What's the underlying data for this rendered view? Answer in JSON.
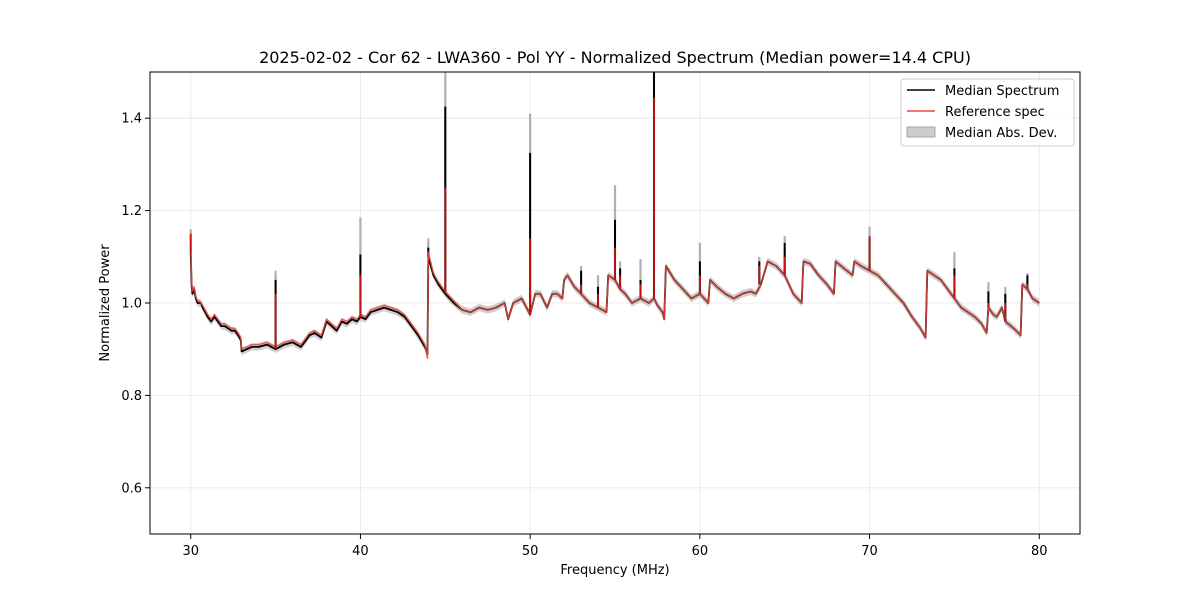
{
  "chart_data": {
    "type": "line",
    "title": "2025-02-02 - Cor 62 - LWA360 - Pol YY - Normalized Spectrum (Median power=14.4 CPU)",
    "xlabel": "Frequency (MHz)",
    "ylabel": "Normalized Power",
    "xlim": [
      27.6,
      82.4
    ],
    "ylim": [
      0.5,
      1.5
    ],
    "xticks": [
      30,
      40,
      50,
      60,
      70,
      80
    ],
    "yticks": [
      0.6,
      0.8,
      1.0,
      1.2,
      1.4
    ],
    "xtick_labels": [
      "30",
      "40",
      "50",
      "60",
      "70",
      "80"
    ],
    "ytick_labels": [
      "0.6",
      "0.8",
      "1.0",
      "1.2",
      "1.4"
    ],
    "grid": true,
    "legend_position": "top-right",
    "legend": [
      "Median Spectrum",
      "Reference spec",
      "Median Abs. Dev."
    ],
    "colors": {
      "median": "#000000",
      "reference": "#e8483f",
      "band": "#999999",
      "grid": "#e6e6e6",
      "legend_border": "#cccccc"
    },
    "mad_width": 0.008,
    "series": [
      {
        "name": "Median Spectrum",
        "x": [
          30.0,
          30.05,
          30.1,
          30.2,
          30.3,
          30.4,
          30.5,
          30.6,
          30.7,
          30.85,
          31.0,
          31.2,
          31.4,
          31.6,
          31.8,
          32.0,
          32.2,
          32.4,
          32.6,
          32.8,
          32.95,
          33.0,
          33.3,
          33.6,
          34.0,
          34.5,
          35.0,
          35.5,
          36.0,
          36.5,
          37.0,
          37.3,
          37.5,
          37.7,
          38.0,
          38.3,
          38.6,
          38.9,
          39.2,
          39.5,
          39.8,
          40.0,
          40.3,
          40.6,
          41.0,
          41.4,
          41.8,
          42.2,
          42.6,
          43.0,
          43.4,
          43.8,
          43.95,
          44.0,
          44.3,
          44.6,
          45.0,
          45.5,
          46.0,
          46.5,
          47.0,
          47.5,
          48.0,
          48.5,
          48.7,
          49.0,
          49.5,
          50.0,
          50.3,
          50.6,
          51.0,
          51.3,
          51.6,
          51.9,
          52.0,
          52.2,
          52.6,
          53.0,
          53.5,
          54.0,
          54.5,
          54.6,
          55.0,
          55.3,
          55.6,
          56.0,
          56.5,
          57.0,
          57.3,
          57.5,
          57.8,
          57.9,
          58.0,
          58.5,
          59.0,
          59.5,
          60.0,
          60.5,
          60.6,
          61.0,
          61.5,
          62.0,
          62.5,
          63.0,
          63.3,
          63.6,
          64.0,
          64.5,
          65.0,
          65.5,
          66.0,
          66.1,
          66.5,
          67.0,
          67.5,
          67.9,
          68.0,
          68.5,
          69.0,
          69.1,
          69.5,
          70.0,
          70.5,
          71.0,
          71.5,
          72.0,
          72.5,
          73.0,
          73.3,
          73.4,
          73.8,
          74.2,
          74.6,
          75.0,
          75.4,
          75.8,
          76.2,
          76.6,
          76.9,
          77.0,
          77.3,
          77.5,
          77.8,
          78.0,
          78.5,
          78.9,
          79.0,
          79.3,
          79.6,
          80.0
        ],
        "values": [
          1.11,
          1.04,
          1.02,
          1.03,
          1.01,
          1.0,
          1.0,
          1.0,
          0.99,
          0.98,
          0.97,
          0.96,
          0.97,
          0.96,
          0.95,
          0.95,
          0.945,
          0.94,
          0.94,
          0.93,
          0.92,
          0.895,
          0.9,
          0.905,
          0.905,
          0.91,
          0.9,
          0.91,
          0.915,
          0.905,
          0.93,
          0.935,
          0.93,
          0.925,
          0.96,
          0.95,
          0.94,
          0.96,
          0.955,
          0.965,
          0.96,
          0.97,
          0.965,
          0.98,
          0.985,
          0.99,
          0.985,
          0.98,
          0.97,
          0.95,
          0.93,
          0.905,
          0.89,
          1.1,
          1.06,
          1.04,
          1.02,
          1.0,
          0.985,
          0.98,
          0.99,
          0.985,
          0.99,
          1.0,
          0.965,
          1.0,
          1.01,
          0.975,
          1.02,
          1.02,
          0.99,
          1.02,
          1.02,
          1.01,
          1.05,
          1.06,
          1.035,
          1.02,
          1.0,
          0.99,
          0.98,
          1.06,
          1.05,
          1.03,
          1.02,
          1.0,
          1.01,
          1.0,
          1.01,
          0.995,
          0.98,
          0.965,
          1.08,
          1.05,
          1.03,
          1.01,
          1.02,
          1.0,
          1.05,
          1.035,
          1.02,
          1.01,
          1.02,
          1.025,
          1.02,
          1.04,
          1.09,
          1.08,
          1.06,
          1.02,
          1.0,
          1.09,
          1.085,
          1.06,
          1.04,
          1.02,
          1.09,
          1.075,
          1.06,
          1.09,
          1.08,
          1.07,
          1.06,
          1.04,
          1.02,
          1.0,
          0.97,
          0.945,
          0.925,
          1.07,
          1.06,
          1.05,
          1.03,
          1.01,
          0.99,
          0.98,
          0.97,
          0.955,
          0.935,
          0.99,
          0.975,
          0.97,
          0.99,
          0.96,
          0.945,
          0.93,
          1.04,
          1.03,
          1.01,
          1.0
        ]
      },
      {
        "name": "Reference spec",
        "x": [
          30.0,
          30.05,
          30.1,
          30.2,
          30.3,
          30.4,
          30.5,
          30.6,
          30.7,
          30.85,
          31.0,
          31.2,
          31.4,
          31.6,
          31.8,
          32.0,
          32.2,
          32.4,
          32.6,
          32.8,
          32.95,
          33.0,
          33.3,
          33.6,
          34.0,
          34.5,
          35.0,
          35.5,
          36.0,
          36.5,
          37.0,
          37.3,
          37.5,
          37.7,
          38.0,
          38.3,
          38.6,
          38.9,
          39.2,
          39.5,
          39.8,
          40.0,
          40.3,
          40.6,
          41.0,
          41.4,
          41.8,
          42.2,
          42.6,
          43.0,
          43.4,
          43.8,
          43.95,
          44.0,
          44.3,
          44.6,
          45.0,
          45.5,
          46.0,
          46.5,
          47.0,
          47.5,
          48.0,
          48.5,
          48.7,
          49.0,
          49.5,
          50.0,
          50.3,
          50.6,
          51.0,
          51.3,
          51.6,
          51.9,
          52.0,
          52.2,
          52.6,
          53.0,
          53.5,
          54.0,
          54.5,
          54.6,
          55.0,
          55.3,
          55.6,
          56.0,
          56.5,
          57.0,
          57.3,
          57.5,
          57.8,
          57.9,
          58.0,
          58.5,
          59.0,
          59.5,
          60.0,
          60.5,
          60.6,
          61.0,
          61.5,
          62.0,
          62.5,
          63.0,
          63.3,
          63.6,
          64.0,
          64.5,
          65.0,
          65.5,
          66.0,
          66.1,
          66.5,
          67.0,
          67.5,
          67.9,
          68.0,
          68.5,
          69.0,
          69.1,
          69.5,
          70.0,
          70.5,
          71.0,
          71.5,
          72.0,
          72.5,
          73.0,
          73.3,
          73.4,
          73.8,
          74.2,
          74.6,
          75.0,
          75.4,
          75.8,
          76.2,
          76.6,
          76.9,
          77.0,
          77.3,
          77.5,
          77.8,
          78.0,
          78.5,
          78.9,
          79.0,
          79.3,
          79.6,
          80.0
        ],
        "values": [
          1.15,
          1.045,
          1.025,
          1.035,
          1.015,
          1.005,
          1.005,
          1.0,
          0.995,
          0.985,
          0.975,
          0.965,
          0.975,
          0.965,
          0.955,
          0.955,
          0.95,
          0.945,
          0.945,
          0.935,
          0.925,
          0.9,
          0.905,
          0.91,
          0.91,
          0.915,
          0.905,
          0.915,
          0.92,
          0.91,
          0.935,
          0.94,
          0.935,
          0.93,
          0.965,
          0.955,
          0.945,
          0.965,
          0.96,
          0.97,
          0.965,
          0.975,
          0.97,
          0.985,
          0.99,
          0.995,
          0.99,
          0.985,
          0.975,
          0.955,
          0.935,
          0.91,
          0.88,
          1.11,
          1.065,
          1.045,
          1.025,
          1.005,
          0.985,
          0.98,
          0.99,
          0.985,
          0.99,
          1.0,
          0.965,
          1.0,
          1.01,
          0.975,
          1.02,
          1.02,
          0.99,
          1.02,
          1.02,
          1.01,
          1.05,
          1.06,
          1.035,
          1.02,
          1.0,
          0.99,
          0.98,
          1.06,
          1.05,
          1.03,
          1.02,
          1.0,
          1.01,
          1.0,
          1.01,
          0.995,
          0.98,
          0.965,
          1.08,
          1.05,
          1.03,
          1.01,
          1.02,
          1.0,
          1.05,
          1.035,
          1.02,
          1.01,
          1.02,
          1.025,
          1.02,
          1.04,
          1.09,
          1.08,
          1.06,
          1.02,
          1.0,
          1.09,
          1.085,
          1.06,
          1.04,
          1.02,
          1.09,
          1.075,
          1.06,
          1.09,
          1.08,
          1.07,
          1.06,
          1.04,
          1.02,
          1.0,
          0.97,
          0.945,
          0.925,
          1.07,
          1.06,
          1.05,
          1.03,
          1.01,
          0.99,
          0.98,
          0.97,
          0.955,
          0.935,
          0.99,
          0.975,
          0.97,
          0.99,
          0.96,
          0.945,
          0.93,
          1.04,
          1.03,
          1.01,
          1.0
        ]
      }
    ],
    "spikes": [
      {
        "x": 30.0,
        "median": 1.11,
        "reference": 1.15,
        "mad_top": 1.16
      },
      {
        "x": 35.0,
        "median": 1.05,
        "reference": 1.02,
        "mad_top": 1.07
      },
      {
        "x": 40.0,
        "median": 1.105,
        "reference": 1.06,
        "mad_top": 1.185
      },
      {
        "x": 44.0,
        "median": 1.12,
        "reference": 1.1,
        "mad_top": 1.14
      },
      {
        "x": 45.0,
        "median": 1.425,
        "reference": 1.25,
        "mad_top": 1.5
      },
      {
        "x": 50.0,
        "median": 1.325,
        "reference": 1.14,
        "mad_top": 1.41
      },
      {
        "x": 53.0,
        "median": 1.07,
        "reference": 1.04,
        "mad_top": 1.08
      },
      {
        "x": 54.0,
        "median": 1.035,
        "reference": 1.02,
        "mad_top": 1.06
      },
      {
        "x": 55.0,
        "median": 1.18,
        "reference": 1.12,
        "mad_top": 1.255
      },
      {
        "x": 55.3,
        "median": 1.075,
        "reference": 1.06,
        "mad_top": 1.09
      },
      {
        "x": 56.5,
        "median": 1.05,
        "reference": 1.04,
        "mad_top": 1.095
      },
      {
        "x": 57.3,
        "median": 1.5,
        "reference": 1.445,
        "mad_top": 1.5
      },
      {
        "x": 60.0,
        "median": 1.09,
        "reference": 1.06,
        "mad_top": 1.13
      },
      {
        "x": 63.5,
        "median": 1.09,
        "reference": 1.08,
        "mad_top": 1.1
      },
      {
        "x": 65.0,
        "median": 1.13,
        "reference": 1.1,
        "mad_top": 1.145
      },
      {
        "x": 70.0,
        "median": 1.14,
        "reference": 1.145,
        "mad_top": 1.165
      },
      {
        "x": 75.0,
        "median": 1.075,
        "reference": 1.06,
        "mad_top": 1.11
      },
      {
        "x": 77.0,
        "median": 1.025,
        "reference": 1.0,
        "mad_top": 1.045
      },
      {
        "x": 78.0,
        "median": 1.02,
        "reference": 1.0,
        "mad_top": 1.035
      },
      {
        "x": 79.3,
        "median": 1.06,
        "reference": 1.04,
        "mad_top": 1.065
      }
    ]
  }
}
